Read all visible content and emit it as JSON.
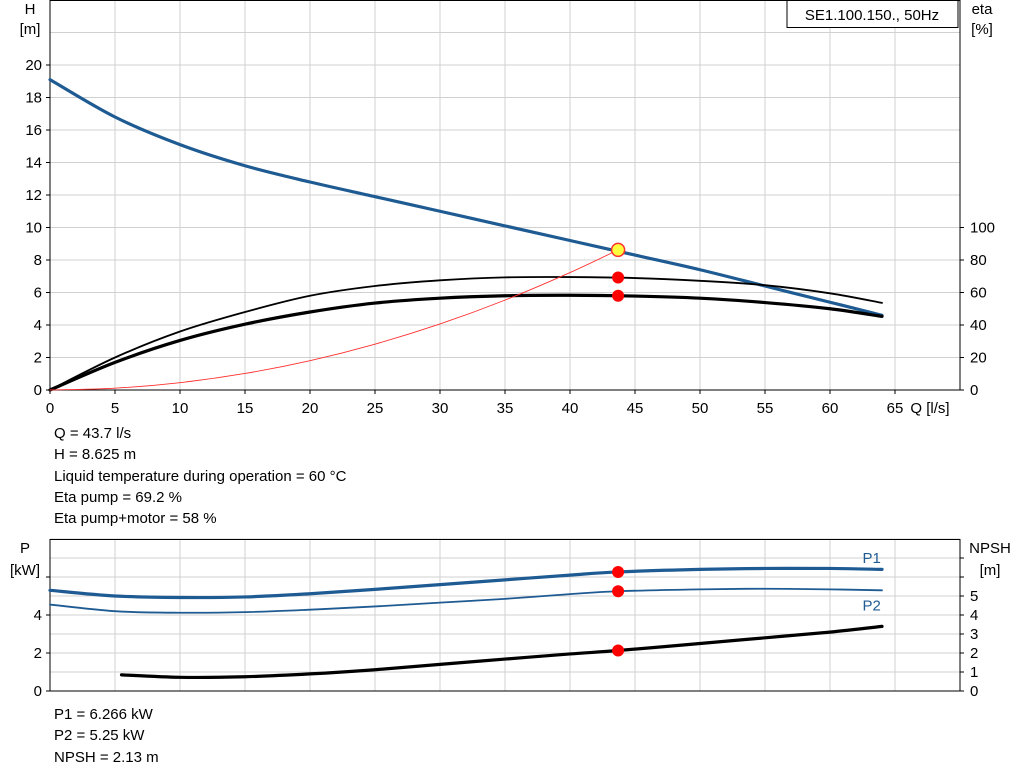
{
  "chart_data": [
    {
      "type": "line",
      "title": "SE1.100.150., 50Hz",
      "xlabel": "Q [l/s]",
      "ylabel_left": [
        "H",
        "[m]"
      ],
      "ylabel_right": [
        "eta",
        "[%]"
      ],
      "xlim": [
        0,
        70
      ],
      "xticks": [
        0,
        5,
        10,
        15,
        20,
        25,
        30,
        35,
        40,
        45,
        50,
        55,
        60,
        65
      ],
      "ylim_left": [
        0,
        24
      ],
      "yticks_left": [
        0,
        2,
        4,
        6,
        8,
        10,
        12,
        14,
        16,
        18,
        20
      ],
      "ylim_right": [
        0,
        240
      ],
      "yticks_right": [
        0,
        20,
        40,
        60,
        80,
        100
      ],
      "grid": true,
      "series": [
        {
          "id": "H",
          "axis": "left",
          "color": "#1f5b93",
          "width": 3.2,
          "x": [
            0,
            5,
            10,
            15,
            20,
            25,
            30,
            35,
            40,
            45,
            50,
            55,
            60,
            64
          ],
          "y": [
            19.1,
            16.8,
            15.1,
            13.8,
            12.8,
            11.9,
            11.0,
            10.1,
            9.2,
            8.3,
            7.4,
            6.4,
            5.4,
            4.6
          ]
        },
        {
          "id": "eta_pump",
          "axis": "right",
          "color": "#000000",
          "width": 1.8,
          "x": [
            0,
            5,
            10,
            15,
            20,
            25,
            30,
            35,
            40,
            45,
            50,
            55,
            60,
            64
          ],
          "y": [
            0,
            20,
            36,
            48,
            58,
            64,
            67.5,
            69.3,
            69.5,
            68.9,
            67.2,
            64.5,
            59.5,
            53.6
          ]
        },
        {
          "id": "eta_pump_motor",
          "axis": "right",
          "color": "#000000",
          "width": 3.2,
          "x": [
            0,
            5,
            10,
            15,
            20,
            25,
            30,
            35,
            40,
            45,
            50,
            55,
            60,
            64
          ],
          "y": [
            0,
            17,
            30.5,
            40.5,
            48,
            53.5,
            56.5,
            58,
            58.3,
            57.8,
            56.5,
            53.8,
            50,
            45.3
          ]
        },
        {
          "id": "system",
          "axis": "left",
          "color": "#ff3030",
          "width": 0.9,
          "x": [
            0,
            5,
            10,
            15,
            20,
            25,
            30,
            35,
            40,
            43.7
          ],
          "y": [
            0,
            0.113,
            0.452,
            1.016,
            1.806,
            2.822,
            4.064,
            5.531,
            7.225,
            8.625
          ]
        }
      ],
      "markers": [
        {
          "series": "H",
          "axis": "left",
          "x": 43.7,
          "y": 8.625,
          "style": "yellow"
        },
        {
          "series": "eta_pump",
          "axis": "right",
          "x": 43.7,
          "y": 69.2,
          "style": "red"
        },
        {
          "series": "eta_pump_motor",
          "axis": "right",
          "x": 43.7,
          "y": 58,
          "style": "red"
        }
      ]
    },
    {
      "type": "line",
      "ylabel_left": [
        "P",
        "[kW]"
      ],
      "ylabel_right": [
        "NPSH",
        "[m]"
      ],
      "xlim": [
        0,
        70
      ],
      "ylim_left": [
        0,
        8
      ],
      "yticks_left": [
        0,
        2,
        4
      ],
      "yticks_left_minor": [
        6
      ],
      "ylim_right": [
        0,
        8
      ],
      "yticks_right": [
        0,
        1,
        2,
        3,
        4,
        5
      ],
      "yticks_right_minor": [
        6,
        7
      ],
      "grid": true,
      "series": [
        {
          "id": "P1",
          "name": "P1",
          "axis": "left",
          "color": "#1f5b93",
          "width": 3.2,
          "x": [
            0,
            5,
            10,
            15,
            20,
            25,
            30,
            35,
            40,
            43.7,
            50,
            55,
            60,
            64
          ],
          "y": [
            5.3,
            5.0,
            4.92,
            4.95,
            5.12,
            5.35,
            5.6,
            5.85,
            6.1,
            6.266,
            6.4,
            6.45,
            6.45,
            6.4
          ]
        },
        {
          "id": "P2",
          "name": "P2",
          "axis": "left",
          "color": "#1f5b93",
          "width": 1.8,
          "x": [
            0,
            5,
            10,
            15,
            20,
            25,
            30,
            35,
            40,
            43.7,
            50,
            55,
            60,
            64
          ],
          "y": [
            4.55,
            4.2,
            4.12,
            4.15,
            4.28,
            4.45,
            4.65,
            4.85,
            5.1,
            5.25,
            5.35,
            5.38,
            5.35,
            5.3
          ]
        },
        {
          "id": "NPSH",
          "axis": "right",
          "color": "#000000",
          "width": 3.2,
          "x": [
            5.5,
            10,
            15,
            20,
            25,
            30,
            35,
            40,
            43.7,
            50,
            55,
            60,
            64
          ],
          "y": [
            0.85,
            0.72,
            0.75,
            0.9,
            1.12,
            1.4,
            1.68,
            1.95,
            2.13,
            2.5,
            2.8,
            3.1,
            3.4
          ]
        }
      ],
      "labels": [
        {
          "series": "P1",
          "text": "P1",
          "x": 62.5,
          "y": 7.0
        },
        {
          "series": "P2",
          "text": "P2",
          "x": 62.5,
          "y": 4.5
        }
      ],
      "markers": [
        {
          "series": "P1",
          "axis": "left",
          "x": 43.7,
          "y": 6.266,
          "style": "red"
        },
        {
          "series": "P2",
          "axis": "left",
          "x": 43.7,
          "y": 5.25,
          "style": "red"
        },
        {
          "series": "NPSH",
          "axis": "right",
          "x": 43.7,
          "y": 2.13,
          "style": "red"
        }
      ]
    }
  ],
  "readout_top": [
    "Q = 43.7 l/s",
    "H = 8.625 m",
    "Liquid temperature during operation = 60 °C",
    "Eta pump = 69.2 %",
    "Eta pump+motor = 58 %"
  ],
  "readout_bottom": [
    "P1 = 6.266 kW",
    "P2 = 5.25 kW",
    "NPSH = 2.13 m"
  ],
  "colors": {
    "grid": "#d0d0d0",
    "curve_blue": "#1f5b93",
    "marker_red": "#ff0000",
    "marker_yellow": "#ffff40",
    "marker_yellow_edge": "#ff3030"
  }
}
